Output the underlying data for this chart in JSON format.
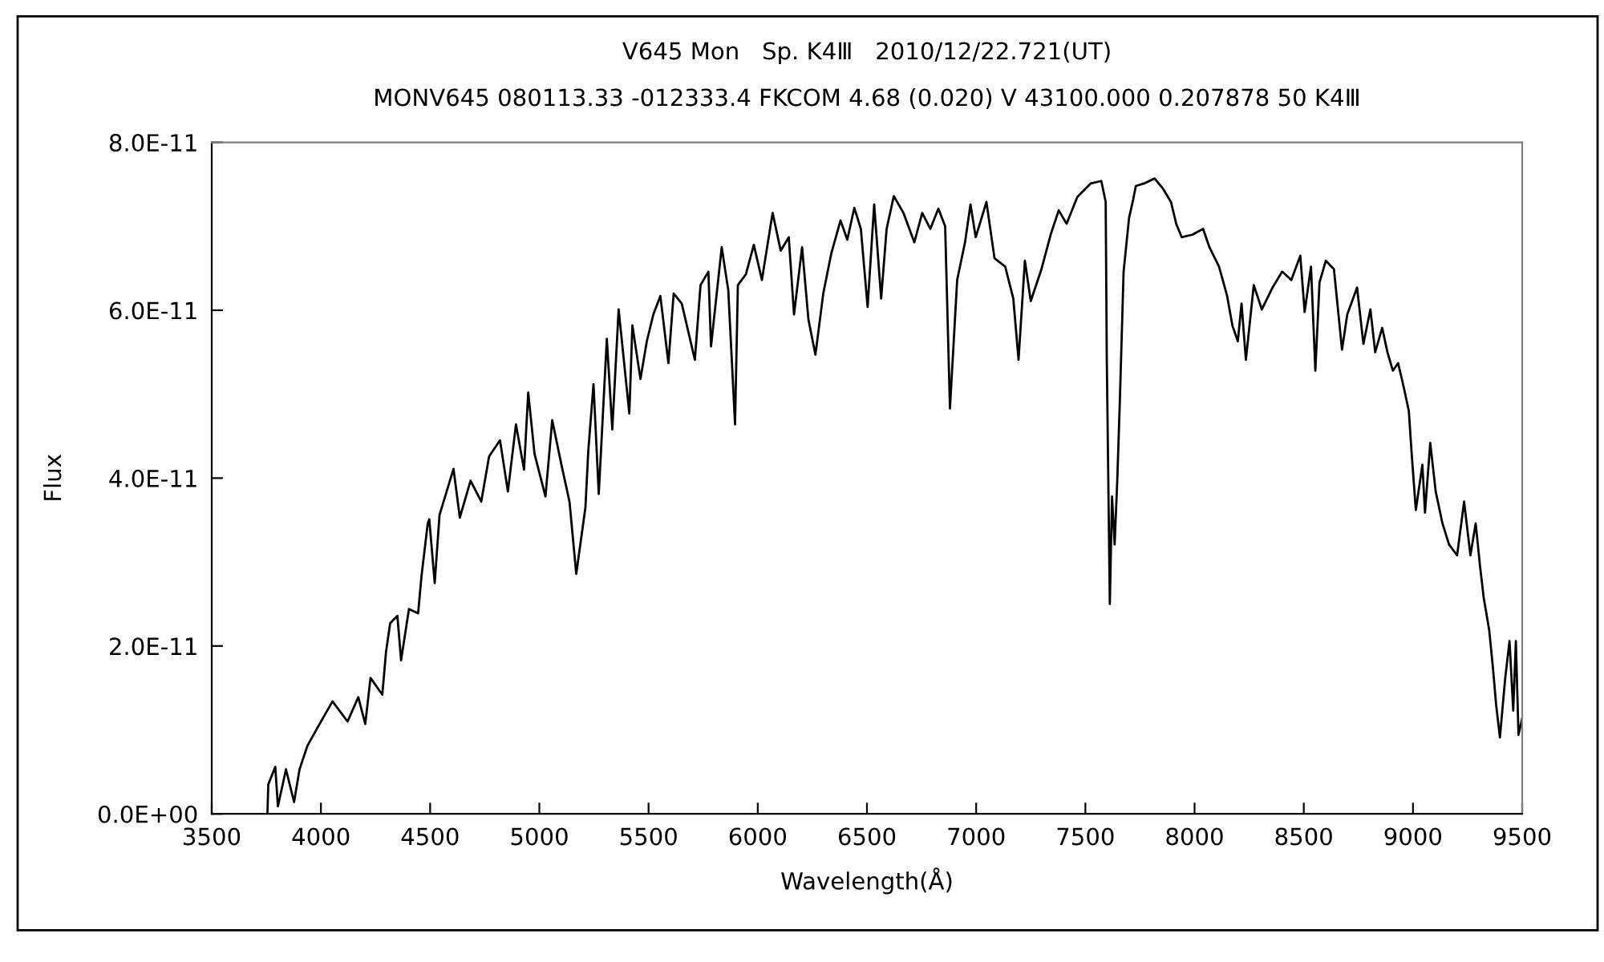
{
  "chart_data": {
    "type": "line",
    "title": "V645 Mon   Sp. K4Ⅲ   2010/12/22.721(UT)",
    "subtitle": "MONV645 080113.33 -012333.4 FKCOM 4.68 (0.020) V 43100.000 0.207878 50 K4Ⅲ",
    "xlabel": "Wavelength(Å)",
    "ylabel": "Flux",
    "xlim": [
      3500,
      9500
    ],
    "xticks": [
      3500,
      4000,
      4500,
      5000,
      5500,
      6000,
      6500,
      7000,
      7500,
      8000,
      8500,
      9000,
      9500
    ],
    "ylim": [
      0,
      8e-11
    ],
    "yticks": [
      {
        "value": 0,
        "label": "0.0E+00"
      },
      {
        "value": 2e-11,
        "label": "2.0E-11"
      },
      {
        "value": 4e-11,
        "label": "4.0E-11"
      },
      {
        "value": 6e-11,
        "label": "6.0E-11"
      },
      {
        "value": 8e-11,
        "label": "8.0E-11"
      }
    ],
    "x": [
      3755,
      3759,
      3791,
      3803,
      3840,
      3877,
      3902,
      3938,
      3987,
      4053,
      4122,
      4171,
      4203,
      4227,
      4281,
      4298,
      4317,
      4350,
      4367,
      4403,
      4445,
      4460,
      4489,
      4496,
      4521,
      4543,
      4607,
      4636,
      4685,
      4734,
      4770,
      4820,
      4856,
      4893,
      4930,
      4949,
      4978,
      5028,
      5059,
      5101,
      5138,
      5169,
      5211,
      5224,
      5248,
      5272,
      5309,
      5334,
      5363,
      5412,
      5426,
      5463,
      5492,
      5522,
      5554,
      5591,
      5615,
      5652,
      5712,
      5738,
      5774,
      5786,
      5835,
      5865,
      5896,
      5909,
      5946,
      5982,
      6019,
      6068,
      6105,
      6142,
      6166,
      6203,
      6232,
      6264,
      6300,
      6337,
      6379,
      6410,
      6442,
      6472,
      6503,
      6533,
      6565,
      6590,
      6623,
      6667,
      6717,
      6753,
      6790,
      6827,
      6858,
      6880,
      6913,
      6949,
      6974,
      6998,
      7047,
      7084,
      7133,
      7170,
      7194,
      7223,
      7250,
      7299,
      7341,
      7378,
      7414,
      7463,
      7524,
      7573,
      7593,
      7598,
      7612,
      7622,
      7634,
      7646,
      7658,
      7675,
      7700,
      7719,
      7731,
      7768,
      7817,
      7855,
      7892,
      7916,
      7941,
      7990,
      8039,
      8068,
      8112,
      8149,
      8173,
      8198,
      8215,
      8235,
      8271,
      8308,
      8357,
      8401,
      8443,
      8484,
      8504,
      8533,
      8553,
      8572,
      8601,
      8638,
      8675,
      8699,
      8744,
      8773,
      8805,
      8827,
      8859,
      8883,
      8908,
      8932,
      8957,
      8981,
      8994,
      9013,
      9043,
      9055,
      9079,
      9104,
      9135,
      9165,
      9202,
      9234,
      9263,
      9287,
      9307,
      9324,
      9349,
      9366,
      9381,
      9398,
      9422,
      9442,
      9459,
      9471,
      9483,
      9500
    ],
    "series": [
      {
        "color": "#000000",
        "values": [
          0.0,
          3.5e-12,
          5.6e-12,
          9e-13,
          5.3e-12,
          1.4e-12,
          5.3e-12,
          8.1e-12,
          1.04e-11,
          1.34e-11,
          1.1e-11,
          1.39e-11,
          1.07e-11,
          1.62e-11,
          1.42e-11,
          1.93e-11,
          2.27e-11,
          2.36e-11,
          1.83e-11,
          2.44e-11,
          2.39e-11,
          2.82e-11,
          3.46e-11,
          3.51e-11,
          2.75e-11,
          3.56e-11,
          4.11e-11,
          3.53e-11,
          3.97e-11,
          3.72e-11,
          4.26e-11,
          4.45e-11,
          3.84e-11,
          4.64e-11,
          4.1e-11,
          5.02e-11,
          4.29e-11,
          3.78e-11,
          4.69e-11,
          4.16e-11,
          3.72e-11,
          2.86e-11,
          3.65e-11,
          4.32e-11,
          5.12e-11,
          3.81e-11,
          5.66e-11,
          4.58e-11,
          6.01e-11,
          4.77e-11,
          5.82e-11,
          5.18e-11,
          5.63e-11,
          5.95e-11,
          6.17e-11,
          5.37e-11,
          6.2e-11,
          6.08e-11,
          5.41e-11,
          6.3e-11,
          6.46e-11,
          5.57e-11,
          6.75e-11,
          6.24e-11,
          4.64e-11,
          6.3e-11,
          6.43e-11,
          6.78e-11,
          6.36e-11,
          7.16e-11,
          6.71e-11,
          6.87e-11,
          5.95e-11,
          6.75e-11,
          5.89e-11,
          5.47e-11,
          6.2e-11,
          6.68e-11,
          7.07e-11,
          6.84e-11,
          7.22e-11,
          6.97e-11,
          6.04e-11,
          7.26e-11,
          6.14e-11,
          6.97e-11,
          7.36e-11,
          7.16e-11,
          6.81e-11,
          7.16e-11,
          6.97e-11,
          7.21e-11,
          7e-11,
          4.83e-11,
          6.36e-11,
          6.81e-11,
          7.26e-11,
          6.87e-11,
          7.29e-11,
          6.62e-11,
          6.52e-11,
          6.14e-11,
          5.41e-11,
          6.59e-11,
          6.11e-11,
          6.49e-11,
          6.9e-11,
          7.19e-11,
          7.03e-11,
          7.35e-11,
          7.51e-11,
          7.54e-11,
          7.29e-11,
          5.44e-11,
          2.5e-11,
          3.78e-11,
          3.21e-11,
          3.97e-11,
          4.93e-11,
          6.46e-11,
          7.1e-11,
          7.32e-11,
          7.48e-11,
          7.51e-11,
          7.57e-11,
          7.45e-11,
          7.29e-11,
          7.03e-11,
          6.87e-11,
          6.9e-11,
          6.97e-11,
          6.75e-11,
          6.52e-11,
          6.17e-11,
          5.82e-11,
          5.63e-11,
          6.08e-11,
          5.41e-11,
          6.3e-11,
          6.01e-11,
          6.27e-11,
          6.46e-11,
          6.36e-11,
          6.65e-11,
          5.98e-11,
          6.52e-11,
          5.28e-11,
          6.33e-11,
          6.59e-11,
          6.49e-11,
          5.53e-11,
          5.95e-11,
          6.27e-11,
          5.6e-11,
          6.01e-11,
          5.5e-11,
          5.79e-11,
          5.5e-11,
          5.28e-11,
          5.37e-11,
          5.09e-11,
          4.8e-11,
          4.29e-11,
          3.62e-11,
          4.16e-11,
          3.59e-11,
          4.42e-11,
          3.84e-11,
          3.46e-11,
          3.21e-11,
          3.08e-11,
          3.72e-11,
          3.08e-11,
          3.46e-11,
          2.95e-11,
          2.57e-11,
          2.19e-11,
          1.74e-11,
          1.29e-11,
          9.1e-12,
          1.61e-11,
          2.06e-11,
          1.23e-11,
          2.06e-11,
          9.4e-12,
          1.14e-11
        ]
      }
    ]
  }
}
